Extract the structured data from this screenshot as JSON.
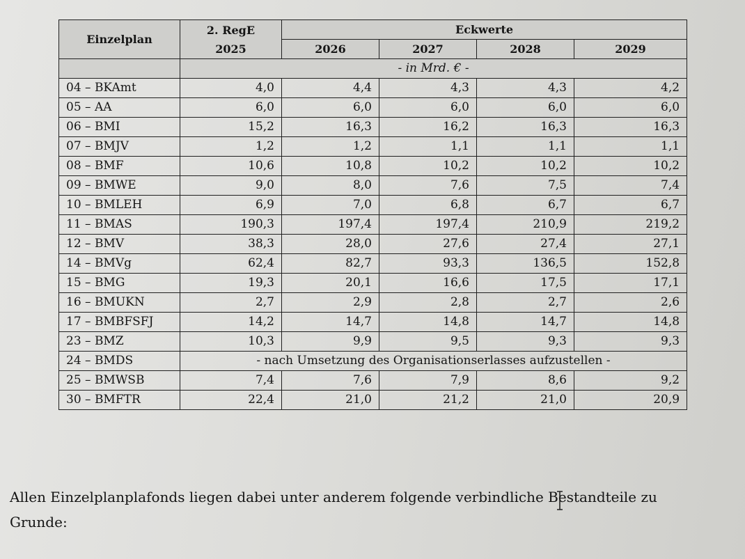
{
  "table": {
    "col_einzelplan": "Einzelplan",
    "col_rege_line1": "2. RegE",
    "col_rege_line2": "2025",
    "col_eckwerte": "Eckwerte",
    "years": [
      "2026",
      "2027",
      "2028",
      "2029"
    ],
    "unit": "- in Mrd. € -",
    "rows": [
      {
        "name": "04 – BKAmt",
        "values": [
          "4,0",
          "4,4",
          "4,3",
          "4,3",
          "4,2"
        ]
      },
      {
        "name": "05 – AA",
        "values": [
          "6,0",
          "6,0",
          "6,0",
          "6,0",
          "6,0"
        ]
      },
      {
        "name": "06 – BMI",
        "values": [
          "15,2",
          "16,3",
          "16,2",
          "16,3",
          "16,3"
        ]
      },
      {
        "name": "07 – BMJV",
        "values": [
          "1,2",
          "1,2",
          "1,1",
          "1,1",
          "1,1"
        ]
      },
      {
        "name": "08 – BMF",
        "values": [
          "10,6",
          "10,8",
          "10,2",
          "10,2",
          "10,2"
        ]
      },
      {
        "name": "09 – BMWE",
        "values": [
          "9,0",
          "8,0",
          "7,6",
          "7,5",
          "7,4"
        ]
      },
      {
        "name": "10 – BMLEH",
        "values": [
          "6,9",
          "7,0",
          "6,8",
          "6,7",
          "6,7"
        ]
      },
      {
        "name": "11 – BMAS",
        "values": [
          "190,3",
          "197,4",
          "197,4",
          "210,9",
          "219,2"
        ]
      },
      {
        "name": "12 – BMV",
        "values": [
          "38,3",
          "28,0",
          "27,6",
          "27,4",
          "27,1"
        ]
      },
      {
        "name": "14 – BMVg",
        "values": [
          "62,4",
          "82,7",
          "93,3",
          "136,5",
          "152,8"
        ]
      },
      {
        "name": "15 – BMG",
        "values": [
          "19,3",
          "20,1",
          "16,6",
          "17,5",
          "17,1"
        ]
      },
      {
        "name": "16 – BMUKN",
        "values": [
          "2,7",
          "2,9",
          "2,8",
          "2,7",
          "2,6"
        ]
      },
      {
        "name": "17 – BMBFSFJ",
        "values": [
          "14,2",
          "14,7",
          "14,8",
          "14,7",
          "14,8"
        ]
      },
      {
        "name": "23 – BMZ",
        "values": [
          "10,3",
          "9,9",
          "9,5",
          "9,3",
          "9,3"
        ]
      },
      {
        "name": "24 – BMDS",
        "note": "- nach Umsetzung des Organisationserlasses aufzustellen -"
      },
      {
        "name": "25 – BMWSB",
        "values": [
          "7,4",
          "7,6",
          "7,9",
          "8,6",
          "9,2"
        ]
      },
      {
        "name": "30 – BMFTR",
        "values": [
          "22,4",
          "21,0",
          "21,2",
          "21,0",
          "20,9"
        ]
      }
    ]
  },
  "body_text": {
    "line1": "Allen Einzelplanplafonds liegen dabei unter anderem folgende verbindliche Bestandteile zu",
    "line2": "Grunde:"
  },
  "icons": {
    "cursor": "text-cursor-icon"
  }
}
